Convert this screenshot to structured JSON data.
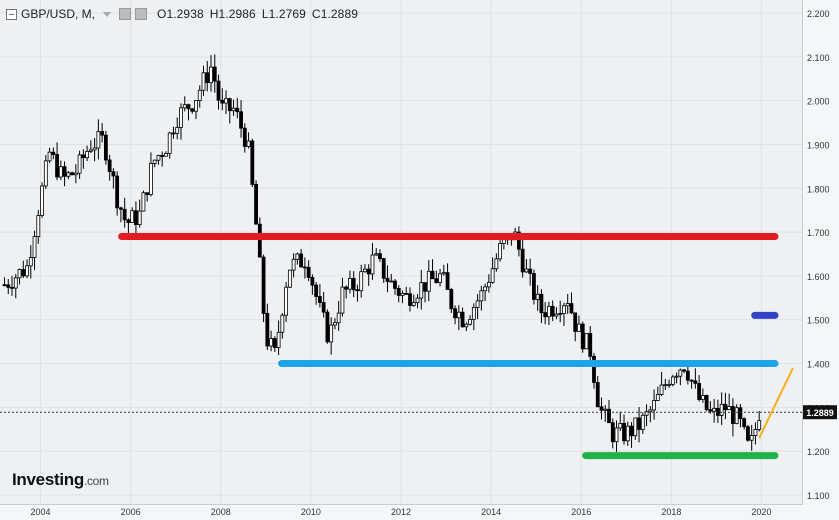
{
  "header": {
    "symbol": "GBP/USD, M,",
    "open": "O1.2938",
    "high": "H1.2986",
    "low": "L1.2769",
    "close": "C1.2889"
  },
  "logo": {
    "brand": "Investing",
    "suffix": ".com"
  },
  "price_tag": "1.2889",
  "colors": {
    "bull": "#ffffff",
    "bear": "#000000",
    "red_line": "#e31c23",
    "blue_line": "#1fa3e8",
    "green_line": "#1fb24a",
    "dark_blue_mark": "#3343c4",
    "trend": "#f5b01a"
  },
  "chart_data": {
    "type": "candlestick",
    "title": "",
    "xlabel": "",
    "ylabel": "",
    "xlim": [
      2003.1,
      2020.9
    ],
    "ylim": [
      1.1,
      2.2
    ],
    "x_ticks": [
      "2004",
      "2006",
      "2008",
      "2010",
      "2012",
      "2014",
      "2016",
      "2018",
      "2020"
    ],
    "y_ticks": [
      "2.200",
      "2.100",
      "2.000",
      "1.900",
      "1.800",
      "1.700",
      "1.600",
      "1.500",
      "1.400",
      "1.300",
      "1.200",
      "1.100"
    ],
    "current_price": 1.2889,
    "series": [
      {
        "keypoints": [
          [
            2003.2,
            1.58
          ],
          [
            2003.7,
            1.62
          ],
          [
            2004.0,
            1.78
          ],
          [
            2004.2,
            1.88
          ],
          [
            2004.5,
            1.82
          ],
          [
            2004.8,
            1.84
          ],
          [
            2005.1,
            1.9
          ],
          [
            2005.4,
            1.91
          ],
          [
            2005.7,
            1.78
          ],
          [
            2005.9,
            1.72
          ],
          [
            2006.2,
            1.74
          ],
          [
            2006.5,
            1.86
          ],
          [
            2006.8,
            1.9
          ],
          [
            2007.0,
            1.96
          ],
          [
            2007.4,
            2.0
          ],
          [
            2007.8,
            2.08
          ],
          [
            2008.0,
            1.98
          ],
          [
            2008.3,
            1.98
          ],
          [
            2008.6,
            1.9
          ],
          [
            2008.8,
            1.7
          ],
          [
            2009.0,
            1.46
          ],
          [
            2009.2,
            1.42
          ],
          [
            2009.5,
            1.62
          ],
          [
            2009.9,
            1.64
          ],
          [
            2010.2,
            1.52
          ],
          [
            2010.4,
            1.46
          ],
          [
            2010.7,
            1.56
          ],
          [
            2011.0,
            1.58
          ],
          [
            2011.4,
            1.64
          ],
          [
            2011.8,
            1.58
          ],
          [
            2012.1,
            1.55
          ],
          [
            2012.5,
            1.58
          ],
          [
            2012.9,
            1.6
          ],
          [
            2013.1,
            1.54
          ],
          [
            2013.4,
            1.5
          ],
          [
            2013.8,
            1.56
          ],
          [
            2014.2,
            1.66
          ],
          [
            2014.5,
            1.7
          ],
          [
            2014.8,
            1.6
          ],
          [
            2015.1,
            1.52
          ],
          [
            2015.4,
            1.53
          ],
          [
            2015.7,
            1.55
          ],
          [
            2015.9,
            1.48
          ],
          [
            2016.2,
            1.43
          ],
          [
            2016.4,
            1.3
          ],
          [
            2016.7,
            1.24
          ],
          [
            2017.0,
            1.24
          ],
          [
            2017.3,
            1.26
          ],
          [
            2017.6,
            1.3
          ],
          [
            2018.0,
            1.38
          ],
          [
            2018.3,
            1.4
          ],
          [
            2018.6,
            1.32
          ],
          [
            2018.9,
            1.28
          ],
          [
            2019.2,
            1.3
          ],
          [
            2019.5,
            1.27
          ],
          [
            2019.7,
            1.21
          ],
          [
            2019.8,
            1.22
          ],
          [
            2019.95,
            1.29
          ]
        ]
      }
    ],
    "lines": [
      {
        "name": "red",
        "price": 1.69,
        "x_from": 2005.8,
        "x_to": 2020.3
      },
      {
        "name": "blue",
        "price": 1.4,
        "x_from": 2009.35,
        "x_to": 2020.3
      },
      {
        "name": "green",
        "price": 1.19,
        "x_from": 2016.1,
        "x_to": 2020.3
      },
      {
        "name": "dark-blue",
        "price": 1.51,
        "x_from": 2019.85,
        "x_to": 2020.3
      }
    ],
    "trend": {
      "from": [
        2019.95,
        1.23
      ],
      "to": [
        2020.7,
        1.39
      ]
    },
    "grid": true
  }
}
